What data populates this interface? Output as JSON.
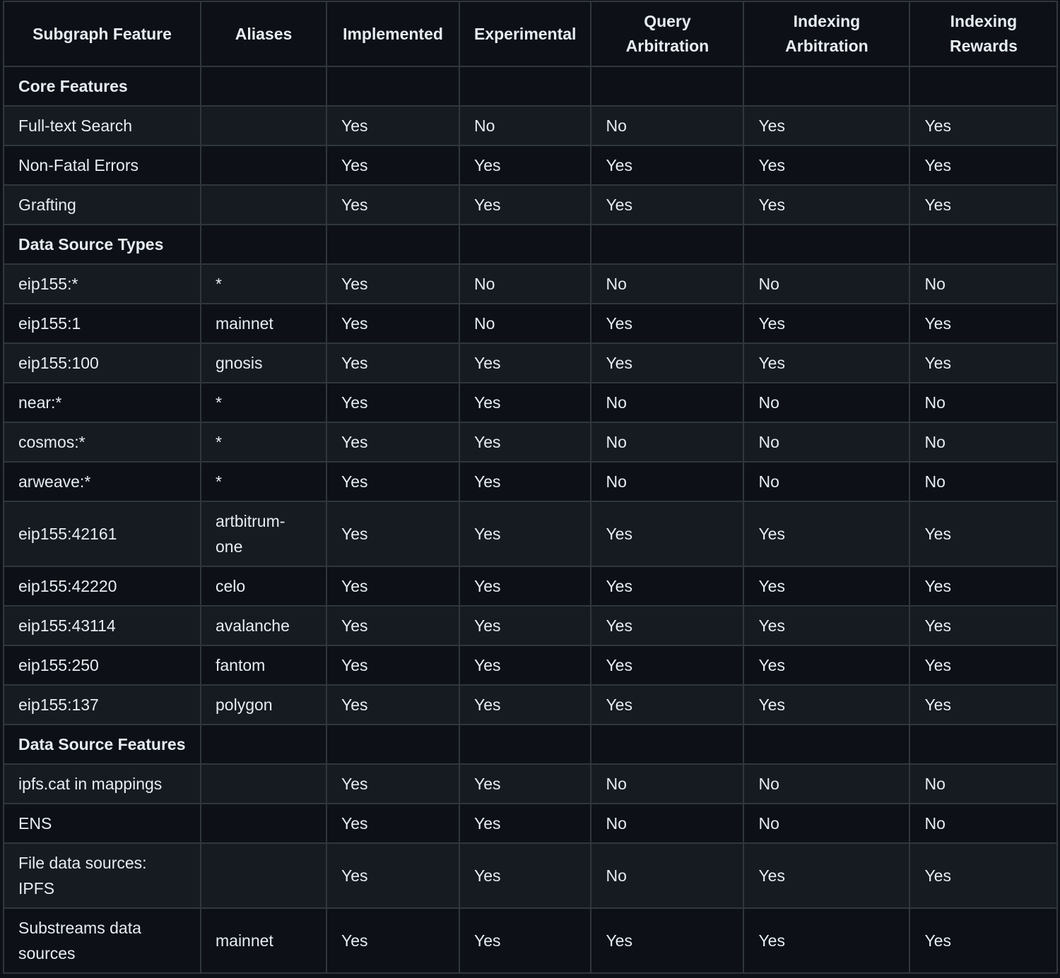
{
  "table": {
    "headers": [
      "Subgraph Feature",
      "Aliases",
      "Implemented",
      "Experimental",
      "Query Arbitration",
      "Indexing Arbitration",
      "Indexing Rewards"
    ],
    "rows": [
      {
        "section": true,
        "cells": [
          "Core Features",
          "",
          "",
          "",
          "",
          "",
          ""
        ]
      },
      {
        "cells": [
          "Full-text Search",
          "",
          "Yes",
          "No",
          "No",
          "Yes",
          "Yes"
        ]
      },
      {
        "cells": [
          "Non-Fatal Errors",
          "",
          "Yes",
          "Yes",
          "Yes",
          "Yes",
          "Yes"
        ]
      },
      {
        "cells": [
          "Grafting",
          "",
          "Yes",
          "Yes",
          "Yes",
          "Yes",
          "Yes"
        ]
      },
      {
        "section": true,
        "cells": [
          "Data Source Types",
          "",
          "",
          "",
          "",
          "",
          ""
        ]
      },
      {
        "cells": [
          "eip155:*",
          "*",
          "Yes",
          "No",
          "No",
          "No",
          "No"
        ]
      },
      {
        "cells": [
          "eip155:1",
          "mainnet",
          "Yes",
          "No",
          "Yes",
          "Yes",
          "Yes"
        ]
      },
      {
        "cells": [
          "eip155:100",
          "gnosis",
          "Yes",
          "Yes",
          "Yes",
          "Yes",
          "Yes"
        ]
      },
      {
        "cells": [
          "near:*",
          "*",
          "Yes",
          "Yes",
          "No",
          "No",
          "No"
        ]
      },
      {
        "cells": [
          "cosmos:*",
          "*",
          "Yes",
          "Yes",
          "No",
          "No",
          "No"
        ]
      },
      {
        "cells": [
          "arweave:*",
          "*",
          "Yes",
          "Yes",
          "No",
          "No",
          "No"
        ]
      },
      {
        "cells": [
          "eip155:42161",
          "artbitrum-one",
          "Yes",
          "Yes",
          "Yes",
          "Yes",
          "Yes"
        ]
      },
      {
        "cells": [
          "eip155:42220",
          "celo",
          "Yes",
          "Yes",
          "Yes",
          "Yes",
          "Yes"
        ]
      },
      {
        "cells": [
          "eip155:43114",
          "avalanche",
          "Yes",
          "Yes",
          "Yes",
          "Yes",
          "Yes"
        ]
      },
      {
        "cells": [
          "eip155:250",
          "fantom",
          "Yes",
          "Yes",
          "Yes",
          "Yes",
          "Yes"
        ]
      },
      {
        "cells": [
          "eip155:137",
          "polygon",
          "Yes",
          "Yes",
          "Yes",
          "Yes",
          "Yes"
        ]
      },
      {
        "section": true,
        "cells": [
          "Data Source Features",
          "",
          "",
          "",
          "",
          "",
          ""
        ]
      },
      {
        "cells": [
          "ipfs.cat in mappings",
          "",
          "Yes",
          "Yes",
          "No",
          "No",
          "No"
        ]
      },
      {
        "cells": [
          "ENS",
          "",
          "Yes",
          "Yes",
          "No",
          "No",
          "No"
        ]
      },
      {
        "cells": [
          "File data sources: IPFS",
          "",
          "Yes",
          "Yes",
          "No",
          "Yes",
          "Yes"
        ]
      },
      {
        "cells": [
          "Substreams data sources",
          "mainnet",
          "Yes",
          "Yes",
          "Yes",
          "Yes",
          "Yes"
        ]
      }
    ]
  }
}
